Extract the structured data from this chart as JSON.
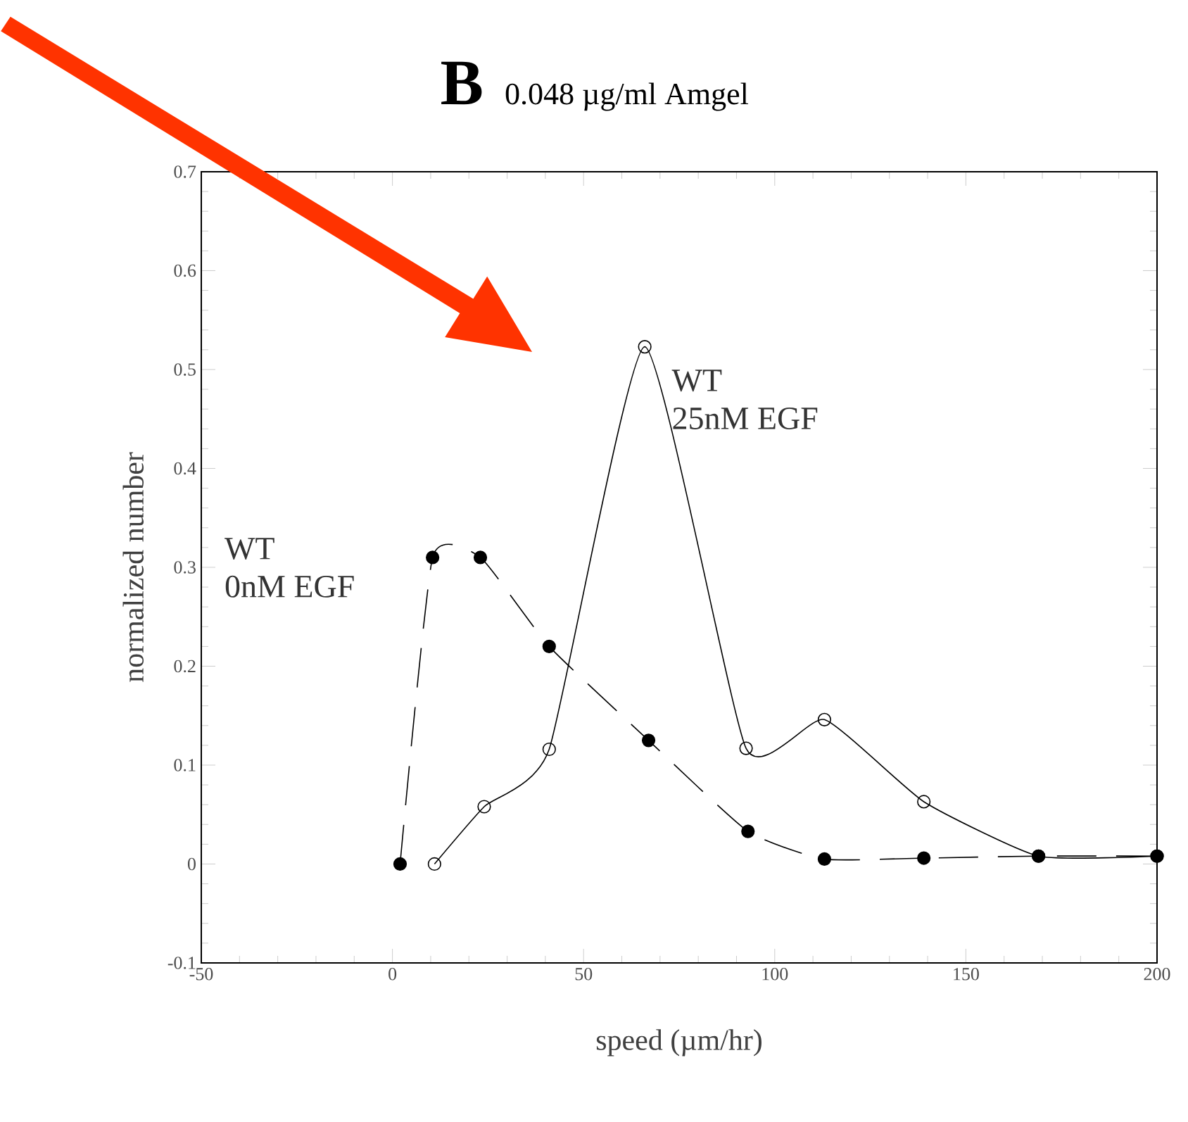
{
  "chart_data": {
    "type": "line",
    "title": "B",
    "subtitle": "0.048 µg/ml Amgel",
    "xlabel": "speed (µm/hr)",
    "ylabel": "normalized number",
    "x": [
      2,
      10.5,
      23,
      41,
      67,
      93,
      113,
      139,
      169,
      200
    ],
    "series": [
      {
        "name": "WT 0nM EGF",
        "color": "#000000",
        "marker": "circle",
        "line_style": "dashed",
        "values": [
          0,
          0.31,
          0.31,
          0.22,
          0.125,
          0.033,
          0.005,
          0.006,
          0.008,
          0.008
        ]
      },
      {
        "name": "WT 25nM EGF",
        "color": "#000000",
        "marker": "open circle",
        "line_style": "solid",
        "x": [
          11,
          24,
          41,
          66,
          92.5,
          113,
          139,
          169,
          200
        ],
        "values": [
          0,
          0.058,
          0.116,
          0.523,
          0.117,
          0.146,
          0.063,
          0.008,
          0.008
        ]
      }
    ],
    "xlim": [
      -50,
      200
    ],
    "xticks": [
      -50,
      0,
      50,
      100,
      150,
      200
    ],
    "ylim": [
      -0.1,
      0.7
    ],
    "yticks": [
      -0.1,
      0,
      0.1,
      0.2,
      0.3,
      0.4,
      0.5,
      0.6,
      0.7
    ],
    "grid": false,
    "legend": false
  }
}
